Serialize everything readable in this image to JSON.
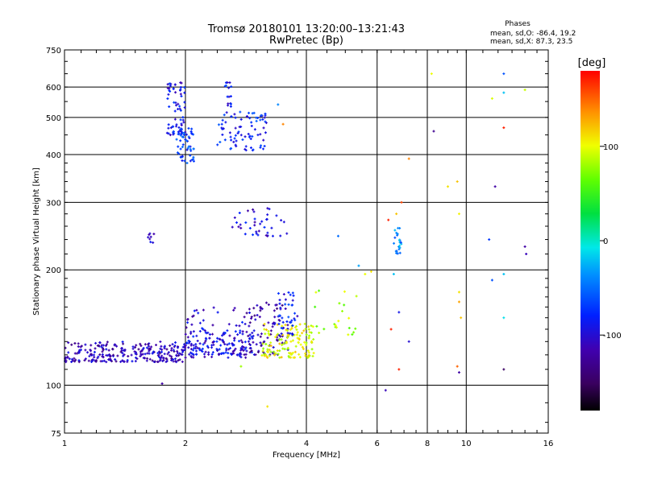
{
  "chart_data": {
    "type": "scatter",
    "title": "Tromsø 20180101 13:20:00–13:21:43",
    "subtitle": "RwPretec (Bp)",
    "xlabel": "Frequency [MHz]",
    "ylabel": "Stationary phase Virtual Height [km]",
    "x_scale": "log",
    "y_scale": "log",
    "xlim": [
      1,
      16
    ],
    "ylim": [
      75,
      750
    ],
    "x_ticks": [
      1,
      2,
      4,
      6,
      8,
      10,
      16
    ],
    "y_ticks": [
      75,
      100,
      200,
      300,
      400,
      500,
      600,
      750
    ],
    "stats": {
      "heading": "Phases",
      "line_o": "mean, sd,O:  -86.4, 19.2",
      "line_x": "mean, sd,X:  87.3, 23.5"
    },
    "colorbar": {
      "label": "[deg]",
      "range": [
        -180,
        180
      ],
      "ticks": [
        100,
        0,
        -100
      ]
    },
    "clusters": [
      {
        "fmin": 1.0,
        "fmax": 2.0,
        "hmin": 115,
        "hmax": 130,
        "n": 260,
        "phase": -110
      },
      {
        "fmin": 2.0,
        "fmax": 3.0,
        "hmin": 118,
        "hmax": 140,
        "n": 130,
        "phase": -95
      },
      {
        "fmin": 2.0,
        "fmax": 2.8,
        "hmin": 120,
        "hmax": 160,
        "n": 60,
        "phase": -100
      },
      {
        "fmin": 2.8,
        "fmax": 3.6,
        "hmin": 120,
        "hmax": 165,
        "n": 90,
        "phase": -115
      },
      {
        "fmin": 3.1,
        "fmax": 4.2,
        "hmin": 118,
        "hmax": 145,
        "n": 130,
        "phase": 100
      },
      {
        "fmin": 3.4,
        "fmax": 3.8,
        "hmin": 135,
        "hmax": 175,
        "n": 40,
        "phase": -85
      },
      {
        "fmin": 1.8,
        "fmax": 2.0,
        "hmin": 450,
        "hmax": 620,
        "n": 70,
        "phase": -90
      },
      {
        "fmin": 1.9,
        "fmax": 2.1,
        "hmin": 380,
        "hmax": 470,
        "n": 50,
        "phase": -70
      },
      {
        "fmin": 2.4,
        "fmax": 3.2,
        "hmin": 410,
        "hmax": 520,
        "n": 80,
        "phase": -80
      },
      {
        "fmin": 2.5,
        "fmax": 2.6,
        "hmin": 530,
        "hmax": 620,
        "n": 15,
        "phase": -85
      },
      {
        "fmin": 2.6,
        "fmax": 3.6,
        "hmin": 245,
        "hmax": 290,
        "n": 40,
        "phase": -95
      },
      {
        "fmin": 1.6,
        "fmax": 1.68,
        "hmin": 235,
        "hmax": 250,
        "n": 8,
        "phase": -110
      },
      {
        "fmin": 6.6,
        "fmax": 6.9,
        "hmin": 220,
        "hmax": 260,
        "n": 25,
        "phase": -40
      },
      {
        "fmin": 4.2,
        "fmax": 5.4,
        "hmin": 135,
        "hmax": 180,
        "n": 22,
        "phase": 80
      }
    ],
    "isolated_points": [
      {
        "x": 8.2,
        "y": 650,
        "phase": 100
      },
      {
        "x": 12.4,
        "y": 650,
        "phase": -60
      },
      {
        "x": 11.6,
        "y": 560,
        "phase": 95
      },
      {
        "x": 12.4,
        "y": 580,
        "phase": -20
      },
      {
        "x": 14.0,
        "y": 590,
        "phase": 90
      },
      {
        "x": 3.4,
        "y": 540,
        "phase": -40
      },
      {
        "x": 3.5,
        "y": 480,
        "phase": 140
      },
      {
        "x": 8.3,
        "y": 460,
        "phase": -130
      },
      {
        "x": 12.4,
        "y": 470,
        "phase": 170
      },
      {
        "x": 7.2,
        "y": 390,
        "phase": 140
      },
      {
        "x": 9.0,
        "y": 330,
        "phase": 110
      },
      {
        "x": 9.5,
        "y": 340,
        "phase": 120
      },
      {
        "x": 11.8,
        "y": 330,
        "phase": -120
      },
      {
        "x": 9.6,
        "y": 280,
        "phase": 105
      },
      {
        "x": 6.4,
        "y": 270,
        "phase": 170
      },
      {
        "x": 6.9,
        "y": 300,
        "phase": 160
      },
      {
        "x": 6.7,
        "y": 280,
        "phase": 120
      },
      {
        "x": 11.4,
        "y": 240,
        "phase": -70
      },
      {
        "x": 14.0,
        "y": 230,
        "phase": -120
      },
      {
        "x": 14.1,
        "y": 220,
        "phase": -110
      },
      {
        "x": 4.8,
        "y": 245,
        "phase": -50
      },
      {
        "x": 5.4,
        "y": 205,
        "phase": -30
      },
      {
        "x": 5.6,
        "y": 195,
        "phase": 100
      },
      {
        "x": 5.8,
        "y": 198,
        "phase": 110
      },
      {
        "x": 6.6,
        "y": 195,
        "phase": -20
      },
      {
        "x": 11.6,
        "y": 188,
        "phase": -60
      },
      {
        "x": 12.4,
        "y": 195,
        "phase": -20
      },
      {
        "x": 9.6,
        "y": 175,
        "phase": 110
      },
      {
        "x": 9.6,
        "y": 165,
        "phase": 130
      },
      {
        "x": 9.7,
        "y": 150,
        "phase": 120
      },
      {
        "x": 12.4,
        "y": 150,
        "phase": -10
      },
      {
        "x": 6.8,
        "y": 155,
        "phase": -90
      },
      {
        "x": 6.5,
        "y": 140,
        "phase": 170
      },
      {
        "x": 7.2,
        "y": 130,
        "phase": -100
      },
      {
        "x": 6.8,
        "y": 110,
        "phase": 170
      },
      {
        "x": 9.5,
        "y": 112,
        "phase": 150
      },
      {
        "x": 9.6,
        "y": 108,
        "phase": -120
      },
      {
        "x": 12.4,
        "y": 110,
        "phase": -150
      },
      {
        "x": 6.3,
        "y": 97,
        "phase": -110
      },
      {
        "x": 3.2,
        "y": 88,
        "phase": 110
      },
      {
        "x": 1.75,
        "y": 101,
        "phase": -120
      },
      {
        "x": 2.75,
        "y": 112,
        "phase": 80
      }
    ]
  }
}
